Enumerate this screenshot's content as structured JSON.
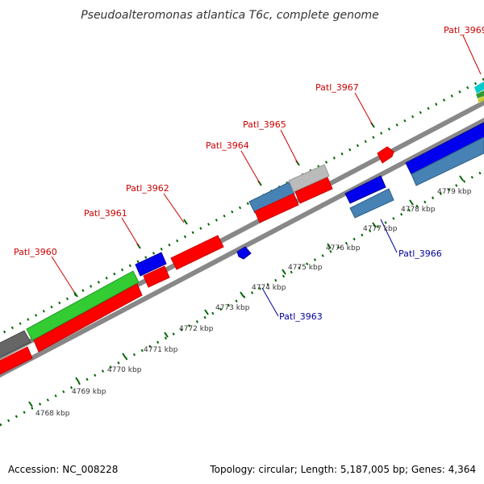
{
  "title": "Pseudoalteromonas atlantica T6c, complete genome",
  "footer": {
    "accession": "Accession: NC_008228",
    "summary": "Topology: circular; Length: 5,187,005 bp; Genes: 4,364"
  },
  "kbp_ticks": [
    "4768 kbp",
    "4769 kbp",
    "4770 kbp",
    "4771 kbp",
    "4772 kbp",
    "4773 kbp",
    "4774 kbp",
    "4775 kbp",
    "4776 kbp",
    "4777 kbp",
    "4778 kbp",
    "4779 kbp"
  ],
  "gene_labels": {
    "patl_3960": "Patl_3960",
    "patl_3961": "Patl_3961",
    "patl_3962": "Patl_3962",
    "patl_3963": "Patl_3963",
    "patl_3964": "Patl_3964",
    "patl_3965": "Patl_3965",
    "patl_3966": "Patl_3966",
    "patl_3967": "Patl_3967",
    "patl_3969": "Patl_3969"
  },
  "colors": {
    "red": "#ff0000",
    "blue": "#0000ee",
    "steelblue": "#4682b4",
    "green": "#33cc33",
    "gray": "#bbbbbb",
    "darkgray": "#666666",
    "tick_green": "#006600",
    "label_red": "#cc0000",
    "label_blue": "#000099"
  }
}
